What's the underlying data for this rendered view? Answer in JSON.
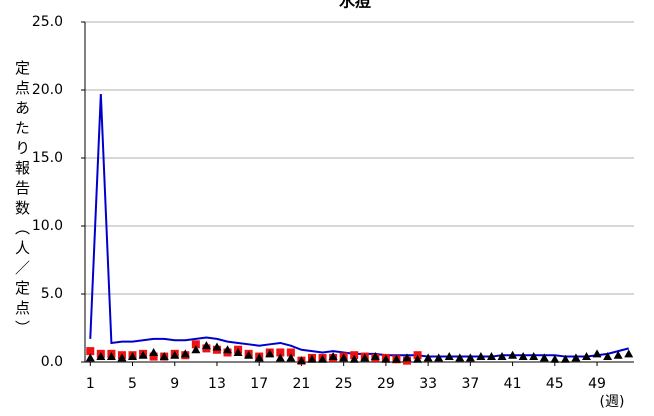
{
  "chart_data": {
    "type": "line",
    "title": "水痘",
    "y_label": "定点あたり報告数（人／定点）",
    "x_label": "(週)",
    "x": [
      1,
      2,
      3,
      4,
      5,
      6,
      7,
      8,
      9,
      10,
      11,
      12,
      13,
      14,
      15,
      16,
      17,
      18,
      19,
      20,
      21,
      22,
      23,
      24,
      25,
      26,
      27,
      28,
      29,
      30,
      31,
      32,
      33,
      34,
      35,
      36,
      37,
      38,
      39,
      40,
      41,
      42,
      43,
      44,
      45,
      46,
      47,
      48,
      49,
      50,
      51,
      52
    ],
    "xlim": [
      0.5,
      52.5
    ],
    "xticks": [
      1,
      5,
      9,
      13,
      17,
      21,
      25,
      29,
      33,
      37,
      41,
      45,
      49
    ],
    "ylim": [
      0,
      25
    ],
    "yticks": [
      {
        "value": 0,
        "label": "0.0"
      },
      {
        "value": 5,
        "label": "5.0"
      },
      {
        "value": 10,
        "label": "10.0"
      },
      {
        "value": 15,
        "label": "15.0"
      },
      {
        "value": 20,
        "label": "20.0"
      },
      {
        "value": 25,
        "label": "25.0"
      }
    ],
    "grid": true,
    "series": [
      {
        "color": "#0000cc",
        "marker": "none",
        "values": [
          1.7,
          19.7,
          1.4,
          1.5,
          1.5,
          1.6,
          1.7,
          1.7,
          1.6,
          1.6,
          1.7,
          1.8,
          1.7,
          1.5,
          1.4,
          1.3,
          1.2,
          1.3,
          1.4,
          1.2,
          0.9,
          0.8,
          0.7,
          0.8,
          0.7,
          0.6,
          0.6,
          0.6,
          0.5,
          0.5,
          0.5,
          0.5,
          0.4,
          0.4,
          0.4,
          0.4,
          0.4,
          0.4,
          0.4,
          0.5,
          0.5,
          0.5,
          0.5,
          0.5,
          0.5,
          0.4,
          0.4,
          0.4,
          0.5,
          0.6,
          0.8,
          1.0
        ]
      },
      {
        "color": "#ee1111",
        "marker": "square",
        "values": [
          0.8,
          0.6,
          0.6,
          0.5,
          0.5,
          0.6,
          0.4,
          0.4,
          0.6,
          0.5,
          1.3,
          1.0,
          0.9,
          0.7,
          0.9,
          0.6,
          0.4,
          0.7,
          0.7,
          0.7,
          0.1,
          0.3,
          0.3,
          0.3,
          0.4,
          0.5,
          0.4,
          0.3,
          0.3,
          0.2,
          0.1,
          0.5,
          null,
          null,
          null,
          null,
          null,
          null,
          null,
          null,
          null,
          null,
          null,
          null,
          null,
          null,
          null,
          null,
          null,
          null,
          null,
          null
        ]
      },
      {
        "color": "#000000",
        "marker": "triangle",
        "values": [
          0.3,
          0.4,
          0.4,
          0.3,
          0.4,
          0.5,
          0.7,
          0.4,
          0.5,
          0.6,
          0.9,
          1.2,
          1.1,
          0.9,
          0.7,
          0.5,
          0.3,
          0.6,
          0.3,
          0.3,
          0.1,
          0.2,
          0.2,
          0.4,
          0.3,
          0.2,
          0.3,
          0.4,
          0.2,
          0.2,
          0.3,
          0.2,
          0.3,
          0.3,
          0.4,
          0.3,
          0.3,
          0.4,
          0.4,
          0.4,
          0.5,
          0.4,
          0.4,
          0.3,
          0.2,
          0.2,
          0.3,
          0.4,
          0.6,
          0.4,
          0.5,
          0.6
        ]
      }
    ]
  }
}
